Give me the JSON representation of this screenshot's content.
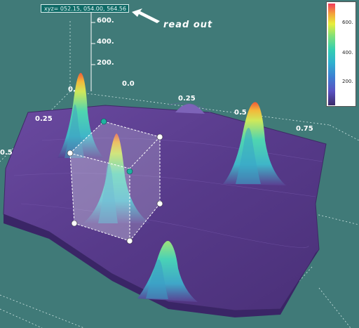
{
  "readout": {
    "text": "xyz= 052.15, 054.00, 564.56",
    "annotation": "read out"
  },
  "axes": {
    "z_ticks": [
      "600.",
      "400.",
      "200.",
      "0."
    ],
    "x_ticks": [
      "0.0",
      "0.25",
      "0.5",
      "0.75"
    ],
    "y_ticks": [
      "0.25",
      "0.5"
    ]
  },
  "legend": {
    "labels": [
      "600.",
      "400.",
      "200."
    ]
  },
  "colors": {
    "background": "#407a78",
    "surface": "#5b3f8e",
    "peak_low": "#3fc7c0",
    "peak_mid": "#7fe06a",
    "peak_high": "#f2c23a",
    "peak_top": "#f05a40"
  },
  "icons": [
    "arrow-left-icon",
    "selection-handle-icon"
  ]
}
